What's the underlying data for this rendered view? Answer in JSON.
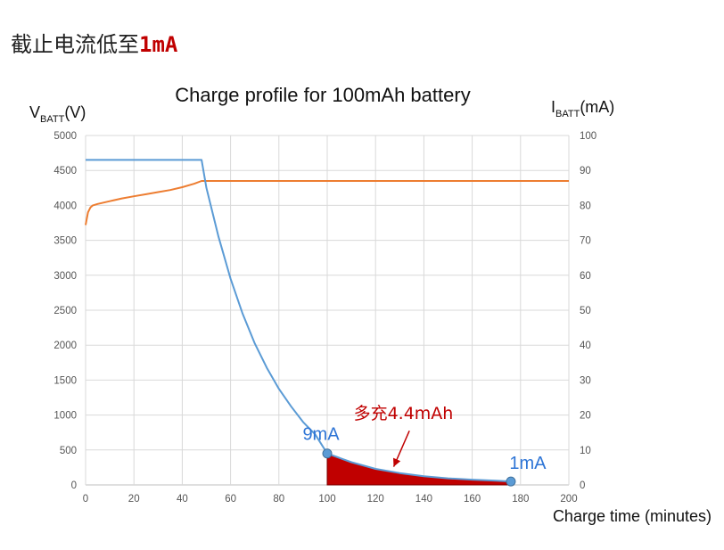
{
  "heading": {
    "text": "截止电流低至",
    "highlight": "1mA"
  },
  "chart_data": {
    "type": "line",
    "title": "Charge profile for 100mAh battery",
    "xlabel": "Charge time (minutes)",
    "ylabel_left": {
      "main": "V",
      "sub": "BATT",
      "suffix": "(V)"
    },
    "ylabel_right": {
      "main": "I",
      "sub": "BATT",
      "suffix": "(mA)"
    },
    "xlim": [
      0,
      200
    ],
    "ylim_left": [
      0,
      5000
    ],
    "ylim_right": [
      0,
      100
    ],
    "x_ticks": [
      "0",
      "20",
      "40",
      "60",
      "80",
      "100",
      "120",
      "140",
      "160",
      "180",
      "200"
    ],
    "y_left_ticks": [
      "0",
      "500",
      "1000",
      "1500",
      "2000",
      "2500",
      "3000",
      "3500",
      "4000",
      "4500",
      "5000"
    ],
    "y_right_ticks": [
      "0",
      "10",
      "20",
      "30",
      "40",
      "50",
      "60",
      "70",
      "80",
      "90",
      "100"
    ],
    "grid": true,
    "series": [
      {
        "axis": "left",
        "color": "#ed7d31",
        "x": [
          0,
          1,
          2,
          3,
          5,
          10,
          15,
          20,
          25,
          30,
          35,
          40,
          45,
          48,
          50,
          60,
          80,
          100,
          120,
          140,
          160,
          180,
          200
        ],
        "y": [
          3720,
          3900,
          3970,
          4000,
          4020,
          4060,
          4100,
          4130,
          4160,
          4190,
          4220,
          4260,
          4310,
          4350,
          4350,
          4350,
          4350,
          4350,
          4350,
          4350,
          4350,
          4350,
          4350
        ]
      },
      {
        "axis": "right",
        "color": "#5b9bd5",
        "x": [
          0,
          48,
          50,
          55,
          60,
          65,
          70,
          75,
          80,
          85,
          90,
          95,
          100,
          110,
          120,
          130,
          140,
          150,
          160,
          170,
          176
        ],
        "y": [
          93,
          93,
          85,
          71,
          59,
          49,
          40.5,
          33.5,
          27.5,
          22.5,
          18,
          14.5,
          9,
          6.5,
          4.6,
          3.4,
          2.5,
          1.9,
          1.5,
          1.2,
          1
        ]
      }
    ],
    "markers": [
      {
        "x": 100,
        "y": 9,
        "axis": "right",
        "label": "9mA"
      },
      {
        "x": 176,
        "y": 1,
        "axis": "right",
        "label": "1mA"
      }
    ],
    "shaded_region": {
      "x_from": 100,
      "x_to": 176,
      "axis": "right",
      "color": "#c00000",
      "label": "多充4.4mAh"
    }
  }
}
